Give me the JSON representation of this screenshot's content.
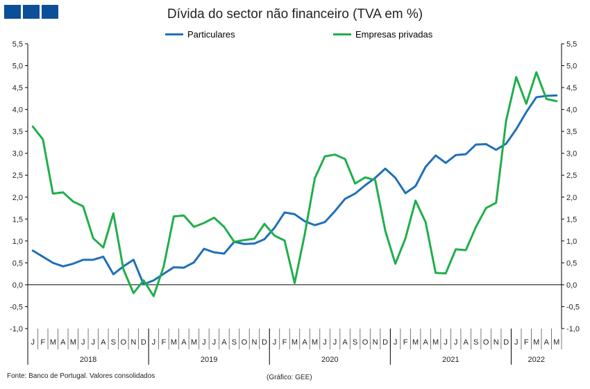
{
  "title": "Dívida do sector não financeiro (TVA em %)",
  "source": "Fonte: Banco de Portugal. Valores consolidados",
  "credit": "(Gráfico: GEE)",
  "colors": {
    "particulares": "#1f6fba",
    "empresas": "#1fae4b",
    "logo": "#0b4f98",
    "axis": "#000000"
  },
  "chart_data": {
    "type": "line",
    "title": "Dívida do sector não financeiro (TVA em %)",
    "ylim": [
      -1.0,
      5.5
    ],
    "yticks": [
      "5,5",
      "5,0",
      "4,5",
      "4,0",
      "3,5",
      "3,0",
      "2,5",
      "2,0",
      "1,5",
      "1,0",
      "0,5",
      "0,0",
      "-0,5",
      "-1,0"
    ],
    "ytick_values": [
      5.5,
      5.0,
      4.5,
      4.0,
      3.5,
      3.0,
      2.5,
      2.0,
      1.5,
      1.0,
      0.5,
      0.0,
      -0.5,
      -1.0
    ],
    "x": [
      "J",
      "F",
      "M",
      "A",
      "M",
      "J",
      "J",
      "A",
      "S",
      "O",
      "N",
      "D",
      "J",
      "F",
      "M",
      "A",
      "M",
      "J",
      "J",
      "A",
      "S",
      "O",
      "N",
      "D",
      "J",
      "F",
      "M",
      "A",
      "M",
      "J",
      "J",
      "A",
      "S",
      "O",
      "N",
      "D",
      "J",
      "F",
      "M",
      "A",
      "M",
      "J",
      "J",
      "A",
      "S",
      "O",
      "N",
      "D",
      "J",
      "F",
      "M",
      "A",
      "M"
    ],
    "years": [
      {
        "label": "2018",
        "months": 12
      },
      {
        "label": "2019",
        "months": 12
      },
      {
        "label": "2020",
        "months": 12
      },
      {
        "label": "2021",
        "months": 12
      },
      {
        "label": "2022",
        "months": 5
      }
    ],
    "legend_position": "top-center",
    "series": [
      {
        "name": "Particulares",
        "color": "#1f6fba",
        "values": [
          0.78,
          0.64,
          0.5,
          0.42,
          0.48,
          0.57,
          0.57,
          0.64,
          0.24,
          0.42,
          0.57,
          0.01,
          0.1,
          0.25,
          0.4,
          0.39,
          0.51,
          0.82,
          0.74,
          0.71,
          0.98,
          0.93,
          0.94,
          1.04,
          1.3,
          1.65,
          1.61,
          1.45,
          1.36,
          1.43,
          1.68,
          1.96,
          2.08,
          2.27,
          2.44,
          2.65,
          2.44,
          2.09,
          2.25,
          2.69,
          2.95,
          2.78,
          2.96,
          2.98,
          3.2,
          3.21,
          3.08,
          3.22,
          3.55,
          3.94,
          4.28,
          4.31,
          4.32
        ]
      },
      {
        "name": "Empresas privadas",
        "color": "#1fae4b",
        "values": [
          3.61,
          3.32,
          2.08,
          2.11,
          1.9,
          1.79,
          1.06,
          0.85,
          1.63,
          0.35,
          -0.19,
          0.1,
          -0.26,
          0.42,
          1.56,
          1.58,
          1.32,
          1.41,
          1.53,
          1.32,
          0.98,
          1.02,
          1.05,
          1.39,
          1.12,
          1.01,
          0.04,
          1.15,
          2.43,
          2.93,
          2.97,
          2.87,
          2.31,
          2.45,
          2.39,
          1.23,
          0.48,
          1.06,
          1.92,
          1.43,
          0.27,
          0.26,
          0.81,
          0.79,
          1.32,
          1.75,
          1.87,
          3.75,
          4.74,
          4.13,
          4.85,
          4.24,
          4.19
        ]
      }
    ]
  }
}
